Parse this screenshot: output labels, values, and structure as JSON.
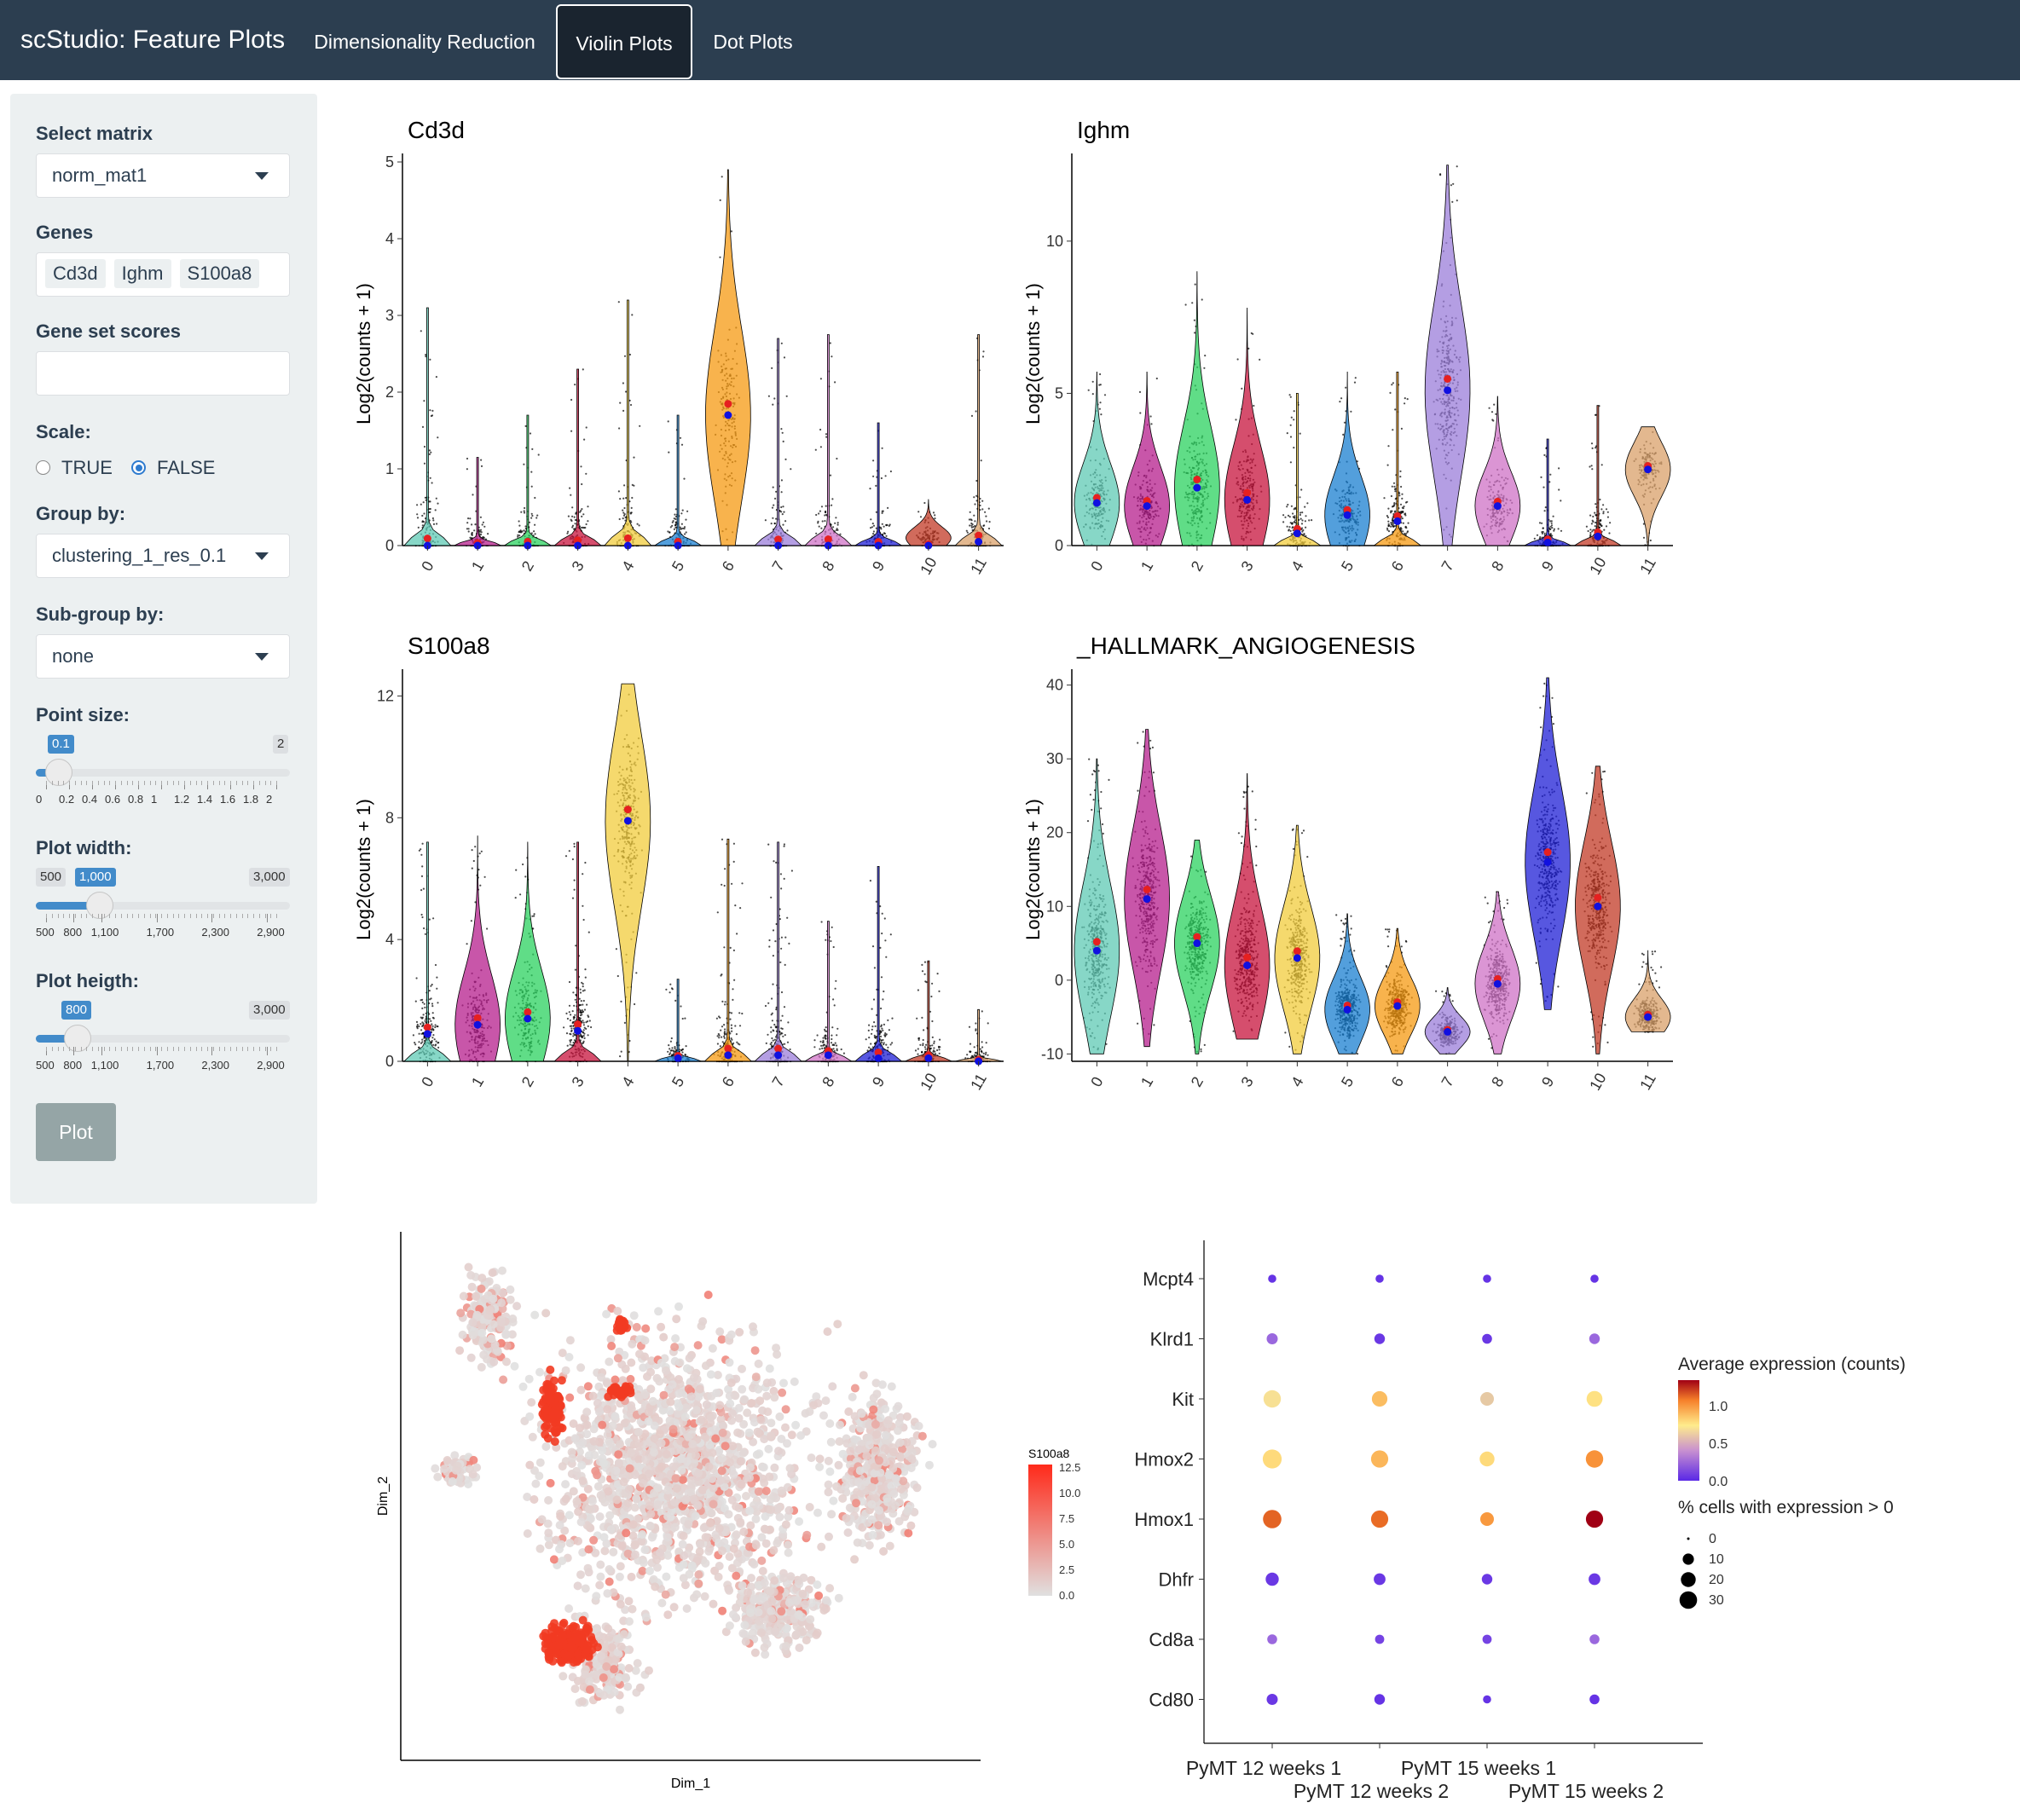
{
  "navbar": {
    "brand": "scStudio: Feature Plots",
    "tabs": [
      {
        "label": "Dimensionality Reduction",
        "active": false
      },
      {
        "label": "Violin Plots",
        "active": true
      },
      {
        "label": "Dot Plots",
        "active": false
      }
    ]
  },
  "sidebar": {
    "matrix_label": "Select matrix",
    "matrix_value": "norm_mat1",
    "genes_label": "Genes",
    "genes": [
      "Cd3d",
      "Ighm",
      "S100a8"
    ],
    "geneset_label": "Gene set scores",
    "geneset_value": "",
    "scale_label": "Scale:",
    "scale_options": [
      "TRUE",
      "FALSE"
    ],
    "scale_selected": "FALSE",
    "groupby_label": "Group by:",
    "groupby_value": "clustering_1_res_0.1",
    "subgroup_label": "Sub-group by:",
    "subgroup_value": "none",
    "pointsize": {
      "label": "Point size:",
      "value": "0.1",
      "max": "2",
      "fraction": 0.05,
      "ticks": [
        "0",
        "0.2",
        "0.4",
        "0.6",
        "0.8",
        "1",
        "1.2",
        "1.4",
        "1.6",
        "1.8",
        "2"
      ]
    },
    "plotwidth": {
      "label": "Plot width:",
      "min": "500",
      "value": "1,000",
      "max": "3,000",
      "fraction": 0.21,
      "ticks": [
        "500",
        "800",
        "1,100",
        "1,700",
        "2,300",
        "2,900"
      ]
    },
    "plotheight": {
      "label": "Plot heigth:",
      "value": "800",
      "max": "3,000",
      "fraction": 0.125,
      "ticks": [
        "500",
        "800",
        "1,100",
        "1,700",
        "2,300",
        "2,900"
      ]
    },
    "plot_button": "Plot"
  },
  "colors": {
    "navbar": "#2c3e50",
    "accent": "#428bca",
    "clusters": [
      "#5fc9b4",
      "#b51d8c",
      "#2bd15f",
      "#c7133c",
      "#f2cc3c",
      "#1a7fd0",
      "#f59a12",
      "#9b7ed9",
      "#cf72c6",
      "#1f1fd6",
      "#c23a26",
      "#d9a06a"
    ]
  },
  "violin_plots": [
    {
      "title": "Cd3d",
      "ylabel": "Log2(counts + 1)",
      "yticks": [
        "0",
        "1",
        "2",
        "3",
        "4",
        "5"
      ],
      "ymax": 5,
      "categories": [
        "0",
        "1",
        "2",
        "3",
        "4",
        "5",
        "6",
        "7",
        "8",
        "9",
        "10",
        "11"
      ],
      "max": [
        3.1,
        1.15,
        1.7,
        2.3,
        3.2,
        1.7,
        4.9,
        2.7,
        2.75,
        1.6,
        0.6,
        2.75
      ],
      "median": [
        0,
        0,
        0,
        0,
        0,
        0,
        1.7,
        0,
        0,
        0,
        0,
        0.05
      ]
    },
    {
      "title": "Ighm",
      "ylabel": "Log2(counts + 1)",
      "yticks": [
        "0",
        "5",
        "10"
      ],
      "ymax": 12.6,
      "categories": [
        "0",
        "1",
        "2",
        "3",
        "4",
        "5",
        "6",
        "7",
        "8",
        "9",
        "10",
        "11"
      ],
      "max": [
        5.7,
        5.7,
        9.0,
        7.8,
        5.0,
        5.7,
        5.7,
        12.5,
        4.9,
        3.5,
        4.6,
        3.9
      ],
      "median": [
        1.4,
        1.3,
        1.9,
        1.5,
        0.4,
        1.0,
        0.8,
        5.1,
        1.3,
        0.1,
        0.3,
        2.5
      ]
    },
    {
      "title": "S100a8",
      "ylabel": "Log2(counts + 1)",
      "yticks": [
        "0",
        "4",
        "8",
        "12"
      ],
      "ymax": 12.6,
      "categories": [
        "0",
        "1",
        "2",
        "3",
        "4",
        "5",
        "6",
        "7",
        "8",
        "9",
        "10",
        "11"
      ],
      "max": [
        7.2,
        7.4,
        7.2,
        7.2,
        12.4,
        2.7,
        7.3,
        7.2,
        4.6,
        6.4,
        3.3,
        1.7
      ],
      "median": [
        0.9,
        1.2,
        1.4,
        1.0,
        7.9,
        0.1,
        0.2,
        0.2,
        0.2,
        0.1,
        0.1,
        0
      ]
    },
    {
      "title": "_HALLMARK_ANGIOGENESIS",
      "ylabel": "Log2(counts + 1)",
      "yticks": [
        "-10",
        "0",
        "10",
        "20",
        "30",
        "40"
      ],
      "ymin": -11,
      "ymax": 41,
      "categories": [
        "0",
        "1",
        "2",
        "3",
        "4",
        "5",
        "6",
        "7",
        "8",
        "9",
        "10",
        "11"
      ],
      "min": [
        -10,
        -9,
        -10,
        -8,
        -10,
        -10,
        -10,
        -10,
        -10,
        -4,
        -10,
        -7
      ],
      "max": [
        30,
        34,
        19,
        28,
        21,
        9,
        7,
        -1,
        12,
        41,
        29,
        4
      ],
      "median": [
        4,
        11,
        5,
        2,
        3,
        -4,
        -3.5,
        -7,
        -0.5,
        16,
        10,
        -5
      ]
    }
  ],
  "tsne": {
    "xlabel": "Dim_1",
    "ylabel": "Dim_2",
    "legend_title": "S100a8",
    "legend_ticks": [
      "12.5",
      "10.0",
      "7.5",
      "5.0",
      "2.5",
      "0.0"
    ],
    "low_color": "#e0e0e0",
    "high_color": "#ff2a1a"
  },
  "dotplot": {
    "genes": [
      "Mcpt4",
      "Klrd1",
      "Kit",
      "Hmox2",
      "Hmox1",
      "Dhfr",
      "Cd8a",
      "Cd80"
    ],
    "groups": [
      "PyMT 12 weeks 1",
      "PyMT 12 weeks 2",
      "PyMT 15 weeks 1",
      "PyMT 15 weeks 2"
    ],
    "expression_title": "Average expression (counts)",
    "expression_ticks": [
      "1.0",
      "0.5",
      "0.0"
    ],
    "size_title": "% cells with expression > 0",
    "size_ticks": [
      "0",
      "10",
      "20",
      "30"
    ],
    "cells": [
      [
        {
          "pct": 2,
          "exp": 0.02
        },
        {
          "pct": 2,
          "exp": 0.02
        },
        {
          "pct": 2,
          "exp": 0.02
        },
        {
          "pct": 2,
          "exp": 0.02
        }
      ],
      [
        {
          "pct": 6,
          "exp": 0.12
        },
        {
          "pct": 5,
          "exp": 0.03
        },
        {
          "pct": 4,
          "exp": 0.03
        },
        {
          "pct": 5,
          "exp": 0.12
        }
      ],
      [
        {
          "pct": 22,
          "exp": 0.42
        },
        {
          "pct": 16,
          "exp": 0.58
        },
        {
          "pct": 11,
          "exp": 0.36
        },
        {
          "pct": 17,
          "exp": 0.48
        }
      ],
      [
        {
          "pct": 27,
          "exp": 0.5
        },
        {
          "pct": 21,
          "exp": 0.6
        },
        {
          "pct": 14,
          "exp": 0.5
        },
        {
          "pct": 22,
          "exp": 0.7
        }
      ],
      [
        {
          "pct": 25,
          "exp": 0.85
        },
        {
          "pct": 21,
          "exp": 0.82
        },
        {
          "pct": 11,
          "exp": 0.68
        },
        {
          "pct": 21,
          "exp": 1.2
        }
      ],
      [
        {
          "pct": 10,
          "exp": 0.03
        },
        {
          "pct": 7,
          "exp": 0.03
        },
        {
          "pct": 5,
          "exp": 0.03
        },
        {
          "pct": 7,
          "exp": 0.03
        }
      ],
      [
        {
          "pct": 4,
          "exp": 0.12
        },
        {
          "pct": 3,
          "exp": 0.05
        },
        {
          "pct": 3,
          "exp": 0.05
        },
        {
          "pct": 4,
          "exp": 0.12
        }
      ],
      [
        {
          "pct": 6,
          "exp": 0.03
        },
        {
          "pct": 5,
          "exp": 0.02
        },
        {
          "pct": 2,
          "exp": 0.02
        },
        {
          "pct": 4,
          "exp": 0.02
        }
      ]
    ]
  }
}
